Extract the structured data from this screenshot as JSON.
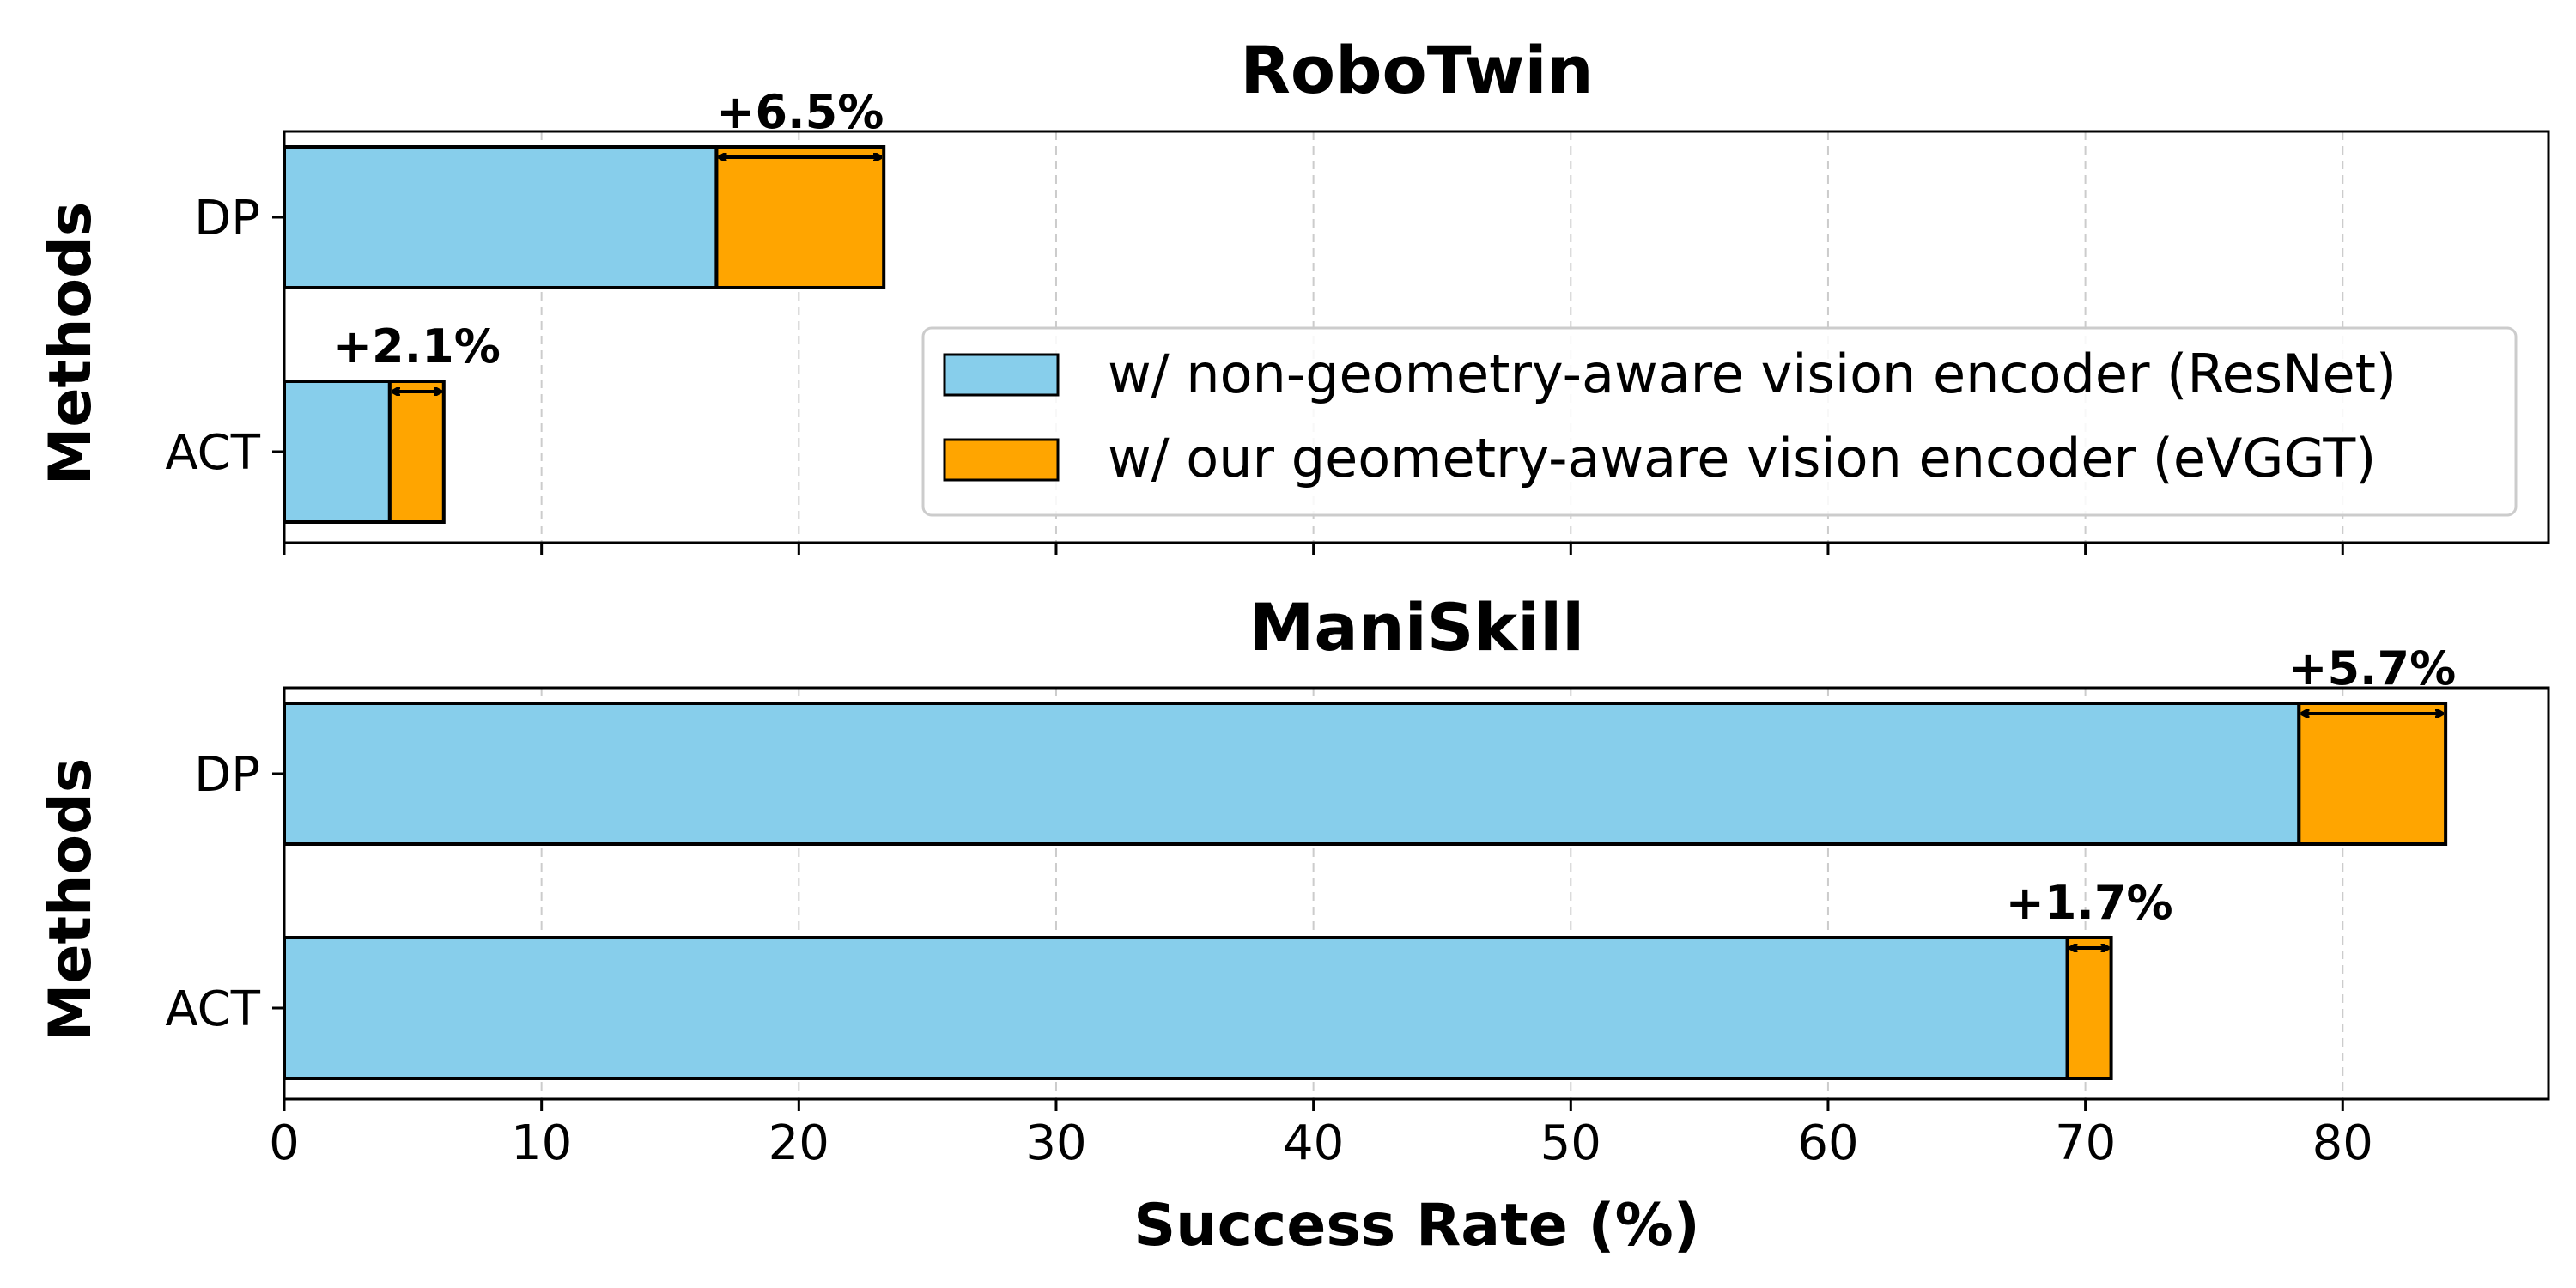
{
  "chart_data": [
    {
      "type": "bar",
      "orientation": "horizontal",
      "stacked": true,
      "title": "RoboTwin",
      "ylabel": "Methods",
      "categories": [
        "DP",
        "ACT"
      ],
      "series": [
        {
          "name": "w/ non-geometry-aware vision encoder (ResNet)",
          "values": [
            16.8,
            4.1
          ],
          "color": "#87CEEB"
        },
        {
          "name": "w/ our geometry-aware vision encoder (eVGGT)",
          "values": [
            6.5,
            2.1
          ],
          "color": "#FFA500"
        }
      ],
      "annotations": [
        "+6.5%",
        "+2.1%"
      ],
      "xlim": [
        0,
        88
      ],
      "grid": "x dashed",
      "legend": "center-right"
    },
    {
      "type": "bar",
      "orientation": "horizontal",
      "stacked": true,
      "title": "ManiSkill",
      "ylabel": "Methods",
      "xlabel": "Success Rate (%)",
      "categories": [
        "DP",
        "ACT"
      ],
      "series": [
        {
          "name": "w/ non-geometry-aware vision encoder (ResNet)",
          "values": [
            78.3,
            69.3
          ],
          "color": "#87CEEB"
        },
        {
          "name": "w/ our geometry-aware vision encoder (eVGGT)",
          "values": [
            5.7,
            1.7
          ],
          "color": "#FFA500"
        }
      ],
      "annotations": [
        "+5.7%",
        "+1.7%"
      ],
      "xlim": [
        0,
        88
      ],
      "xticks": [
        "0",
        "10",
        "20",
        "30",
        "40",
        "50",
        "60",
        "70",
        "80"
      ],
      "grid": "x dashed"
    }
  ]
}
